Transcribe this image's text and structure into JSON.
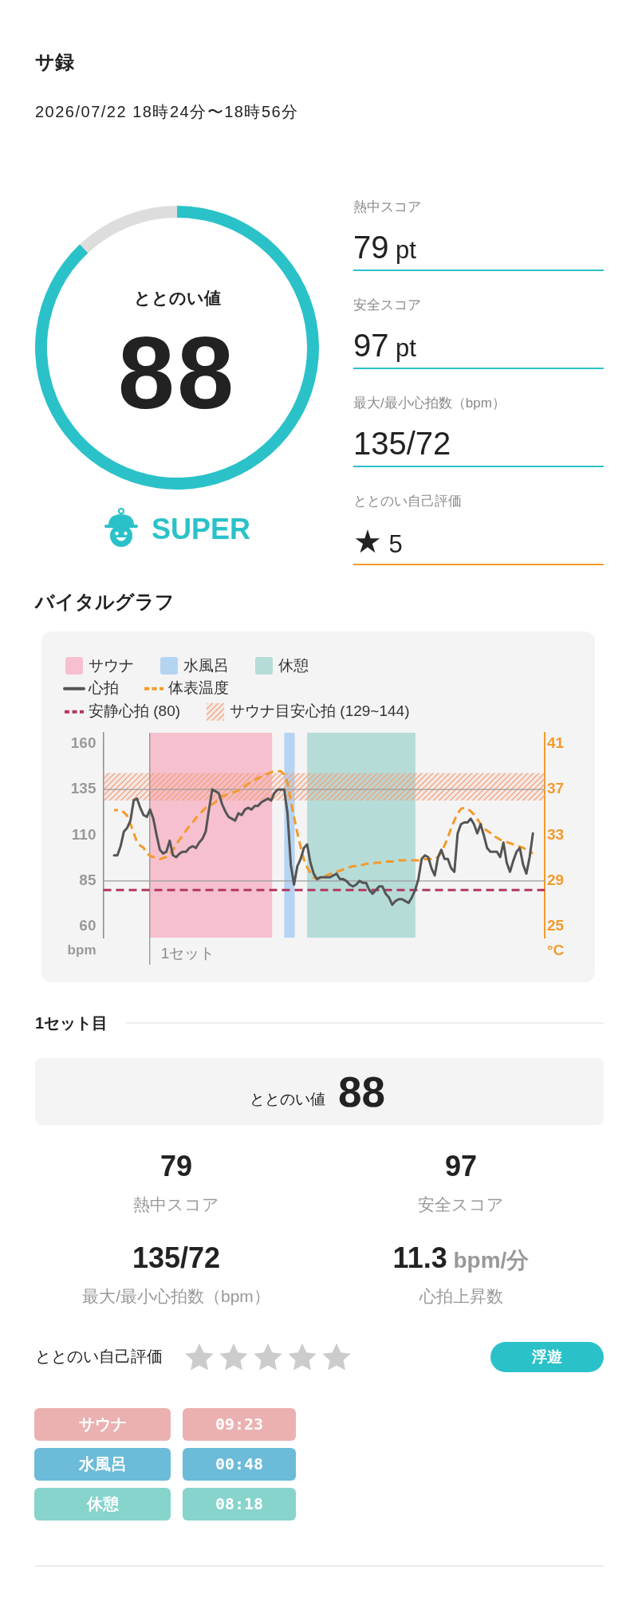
{
  "chart_data": [
    {
      "type": "other",
      "title": "サ録",
      "subtitle": "2026/07/22 18時24分〜18時56分"
    },
    {
      "type": "donut",
      "title": "ととのい値",
      "categories": [
        null,
        null
      ],
      "values": [
        88,
        12
      ],
      "colors": [
        "#2ac2c8",
        "#dddddd"
      ],
      "value_labels": [
        "88",
        null
      ],
      "annotations": [
        "SUPER"
      ]
    },
    {
      "type": "other",
      "annotations": [
        "熱中スコア",
        "79 pt",
        "安全スコア",
        "97 pt",
        "最大/最小心拍数（bpm）",
        "135/72",
        "ととのい自己評価",
        "★ 5"
      ]
    },
    {
      "type": "line",
      "title": "バイタルグラフ",
      "ylabel": "bpm",
      "y2label": "°C",
      "legend": "top left",
      "tick_labels": "y",
      "categories": [
        null,
        null,
        null,
        null,
        null,
        null,
        null,
        null,
        null,
        null,
        null,
        null,
        null,
        null,
        null,
        null,
        null,
        null,
        null,
        null,
        null,
        null,
        null,
        null,
        null,
        null,
        null,
        null,
        null,
        null,
        null,
        null,
        null,
        null,
        null,
        null,
        null,
        null,
        null,
        null,
        null,
        null,
        null,
        null,
        null,
        null,
        null,
        null,
        null,
        null,
        null,
        null,
        null,
        null,
        null,
        null,
        null,
        null,
        null,
        null,
        null,
        null,
        null,
        null,
        null,
        null,
        null,
        null,
        null,
        null,
        null,
        null,
        null,
        null,
        null,
        null,
        null,
        null,
        null,
        null,
        null,
        null,
        null,
        null,
        null,
        null,
        null,
        null,
        null,
        null,
        null,
        null,
        null,
        null,
        null,
        null,
        null,
        null,
        null,
        null,
        null,
        null,
        null,
        null,
        null,
        null,
        null,
        null,
        null,
        null,
        null,
        null,
        null,
        null,
        null,
        null,
        null,
        null,
        null,
        null,
        null,
        null,
        null,
        null,
        null,
        null,
        null,
        null,
        null
      ],
      "ylim": [
        54,
        166
      ],
      "yticks": [
        60,
        85,
        110,
        135,
        160
      ],
      "y2lim": [
        24.04,
        41.96
      ],
      "y2ticks": [
        25,
        29,
        33,
        37,
        41
      ],
      "series": [
        {
          "name": "心拍",
          "color": "#555555",
          "values": [
            99,
            99,
            104,
            112,
            114,
            118,
            129,
            130,
            125,
            121,
            120,
            124,
            119,
            110,
            102,
            100,
            101,
            107,
            99,
            98,
            100,
            101,
            101,
            103,
            104,
            103,
            106,
            108,
            112,
            124,
            135,
            134,
            133,
            127,
            123,
            120,
            119,
            118,
            122,
            121,
            124,
            125,
            124,
            126,
            126,
            128,
            129,
            130,
            129,
            133,
            135,
            135,
            135,
            122,
            94,
            83,
            93,
            97,
            103,
            105,
            95,
            89,
            86,
            87,
            87,
            87,
            87,
            88,
            89,
            86,
            86,
            85,
            83,
            82,
            83,
            85,
            84,
            84,
            80,
            78,
            80,
            82,
            82,
            78,
            76,
            72,
            74,
            75,
            75,
            74,
            73,
            76,
            80,
            86,
            97,
            99,
            98,
            92,
            88,
            98,
            102,
            97,
            97,
            92,
            90,
            111,
            116,
            117,
            117,
            119,
            116,
            111,
            116,
            110,
            103,
            101,
            101,
            101,
            98,
            106,
            95,
            90,
            96,
            101,
            103,
            94,
            89,
            98,
            111
          ]
        },
        {
          "name": "体表温度",
          "color": "#f39a2b",
          "axis": "y2",
          "line_style": "dashed",
          "values": [
            35.2,
            35.2,
            35.2,
            35.0,
            34.7,
            34.0,
            33.2,
            32.4,
            32.1,
            31.9,
            31.4,
            31.2,
            31.1,
            31.0,
            30.9,
            31.0,
            31.1,
            31.3,
            31.7,
            32.2,
            32.6,
            33.0,
            33.4,
            33.8,
            34.1,
            34.5,
            34.8,
            35.1,
            35.4,
            35.5,
            35.7,
            35.9,
            36.2,
            36.4,
            36.5,
            36.6,
            36.7,
            36.8,
            36.9,
            37.1,
            37.3,
            37.5,
            37.7,
            37.8,
            38.0,
            38.1,
            38.2,
            38.4,
            38.5,
            38.6,
            38.6,
            38.6,
            38.3,
            37.6,
            36.0,
            34.6,
            33.2,
            32.0,
            30.9,
            30.2,
            29.7,
            29.3,
            29.2,
            29.2,
            29.3,
            29.5,
            29.6,
            29.7,
            29.8,
            29.9,
            30.0,
            30.1,
            30.2,
            30.3,
            30.3,
            30.4,
            30.4,
            30.5,
            30.5,
            30.5,
            30.6,
            30.6,
            30.6,
            30.7,
            30.7,
            30.7,
            30.7,
            30.8,
            30.8,
            30.8,
            30.8,
            30.8,
            30.8,
            30.8,
            30.9,
            30.9,
            30.9,
            30.9,
            30.9,
            31.1,
            31.5,
            32.1,
            32.8,
            33.6,
            34.3,
            34.9,
            35.3,
            35.4,
            35.3,
            35.1,
            34.8,
            34.4,
            34.0,
            33.6,
            33.4,
            33.2,
            32.9,
            32.8,
            32.6,
            32.5,
            32.4,
            32.3,
            32.2,
            32.1,
            32.0,
            31.9,
            31.7,
            31.6,
            31.4
          ]
        }
      ],
      "bands": [
        {
          "axis": "y",
          "from": 129,
          "to": 144,
          "label": "サウナ目安心拍 (129~144)",
          "color": "#f0a07e"
        }
      ],
      "ref_lines": [
        {
          "axis": "y",
          "value": 80,
          "label": "安静心拍 (80)",
          "color": "#b3385f",
          "line_style": "dashed"
        },
        {
          "axis": "y",
          "value": 135,
          "color": "#9c9c9c"
        },
        {
          "axis": "y",
          "value": 85,
          "color": "#9c9c9c"
        }
      ],
      "annotations": [
        "サウナ",
        "水風呂",
        "休憩",
        "1セット"
      ]
    },
    {
      "type": "other",
      "title": "1セット目",
      "annotations": [
        "ととのい値",
        "88",
        "79",
        "熱中スコア",
        "97",
        "安全スコア",
        "135/72",
        "最大/最小心拍数（bpm）",
        "11.3 bpm/分",
        "心拍上昇数",
        "ととのい自己評価",
        "浮遊",
        "サウナ",
        "09:23",
        "水風呂",
        "00:48",
        "休憩",
        "08:18"
      ]
    }
  ]
}
